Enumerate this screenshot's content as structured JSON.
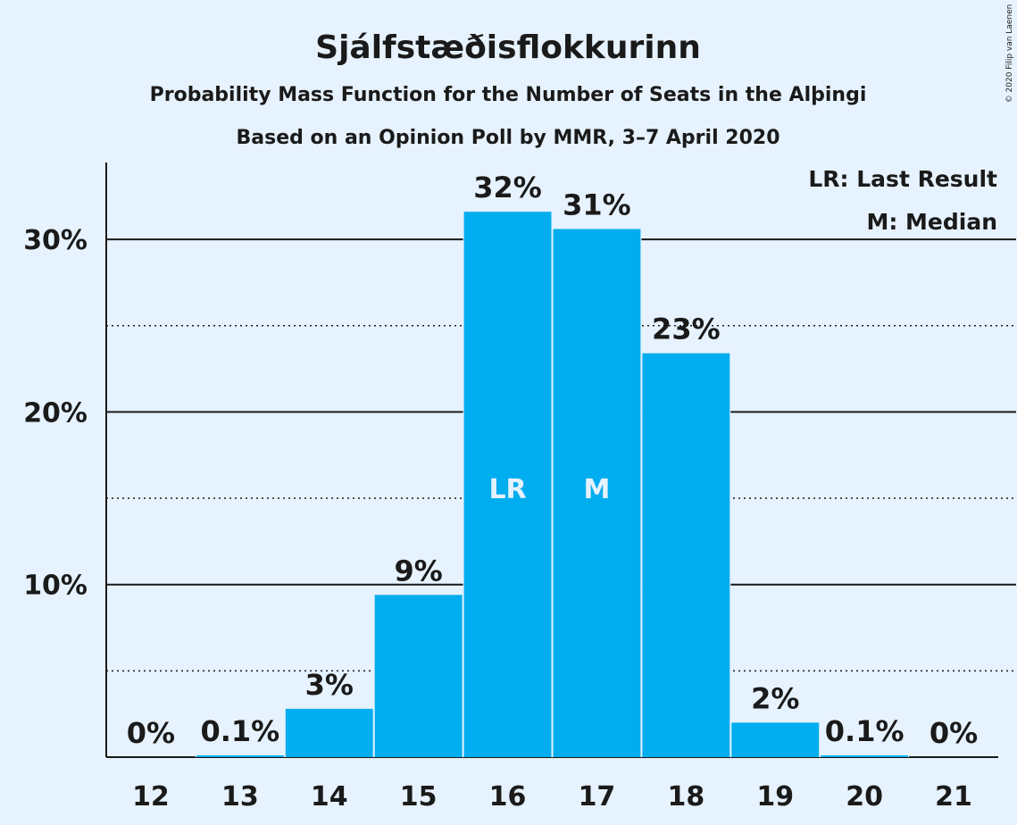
{
  "title": "Sjálfstæðisflokkurinn",
  "subtitle": "Probability Mass Function for the Number of Seats in the Alþingi",
  "subtitle2": "Based on an Opinion Poll by MMR, 3–7 April 2020",
  "credit": "© 2020 Filip van Laenen",
  "legend": {
    "lr": "LR: Last Result",
    "m": "M: Median"
  },
  "colors": {
    "background": "#e6f2fd",
    "bar": "#00adef",
    "text": "#1a1a1a",
    "in_bar_text": "#e6f2fd"
  },
  "chart_data": {
    "type": "bar",
    "categories": [
      "12",
      "13",
      "14",
      "15",
      "16",
      "17",
      "18",
      "19",
      "20",
      "21"
    ],
    "values": [
      0,
      0.1,
      2.8,
      9.4,
      31.6,
      30.6,
      23.4,
      2.0,
      0.1,
      0
    ],
    "data_labels": [
      "0%",
      "0.1%",
      "3%",
      "9%",
      "32%",
      "31%",
      "23%",
      "2%",
      "0.1%",
      "0%"
    ],
    "bar_markers": [
      {
        "category": "16",
        "text": "LR"
      },
      {
        "category": "17",
        "text": "M"
      }
    ],
    "ylim": [
      0,
      34
    ],
    "y_ticks": [
      {
        "value": 10,
        "label": "10%"
      },
      {
        "value": 20,
        "label": "20%"
      },
      {
        "value": 30,
        "label": "30%"
      }
    ],
    "minor_gridlines": [
      5,
      15,
      25
    ],
    "grid": true,
    "legend_position": "top-right"
  }
}
